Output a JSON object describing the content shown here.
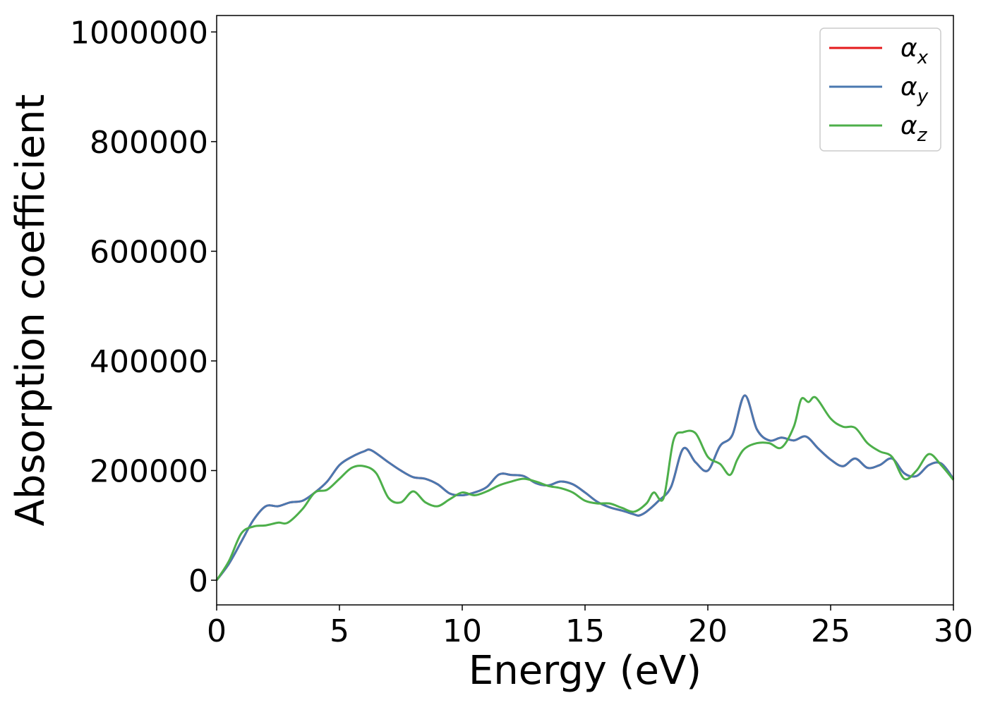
{
  "chart_data": {
    "type": "line",
    "title": "",
    "xlabel": "Energy (eV)",
    "ylabel": "Absorption coefficient",
    "xlim": [
      0,
      30
    ],
    "ylim": [
      -45000,
      1030000
    ],
    "xticks": [
      0,
      5,
      10,
      15,
      20,
      25,
      30
    ],
    "xtick_labels": [
      "0",
      "5",
      "10",
      "15",
      "20",
      "25",
      "30"
    ],
    "yticks": [
      0,
      200000,
      400000,
      600000,
      800000,
      1000000
    ],
    "ytick_labels": [
      "0",
      "200000",
      "400000",
      "600000",
      "800000",
      "1000000"
    ],
    "grid": false,
    "legend_position": "top-right",
    "colors": {
      "alpha_x": "#e41a1c",
      "alpha_y": "#4a78b0",
      "alpha_z": "#4daf4a"
    },
    "series": [
      {
        "name": "α_x",
        "legend_main": "α",
        "legend_sub": "x",
        "color": "#e41a1c",
        "x": [
          0,
          0.5,
          1,
          1.5,
          2,
          2.5,
          3,
          3.5,
          4,
          4.5,
          5,
          5.5,
          6,
          6.3,
          7,
          7.5,
          8,
          8.5,
          9,
          9.5,
          10,
          10.5,
          11,
          11.5,
          12,
          12.5,
          13,
          13.5,
          14,
          14.5,
          15,
          15.5,
          16,
          16.5,
          17,
          17.2,
          17.5,
          18,
          18.5,
          19,
          19.5,
          20,
          20.5,
          21,
          21.5,
          22,
          22.5,
          23,
          23.5,
          24,
          24.5,
          25,
          25.5,
          26,
          26.5,
          27,
          27.5,
          28,
          28.5,
          29,
          29.5,
          30
        ],
        "values": [
          0,
          30000,
          70000,
          110000,
          135000,
          135000,
          142000,
          145000,
          160000,
          180000,
          210000,
          225000,
          235000,
          237000,
          215000,
          200000,
          188000,
          185000,
          175000,
          158000,
          155000,
          160000,
          170000,
          193000,
          192000,
          190000,
          177000,
          173000,
          180000,
          175000,
          160000,
          143000,
          133000,
          127000,
          120000,
          118000,
          125000,
          145000,
          170000,
          240000,
          215000,
          200000,
          245000,
          265000,
          337000,
          275000,
          255000,
          260000,
          255000,
          262000,
          240000,
          220000,
          208000,
          222000,
          205000,
          210000,
          222000,
          195000,
          190000,
          210000,
          213000,
          185000
        ]
      },
      {
        "name": "α_y",
        "legend_main": "α",
        "legend_sub": "y",
        "color": "#4a78b0",
        "x": [
          0,
          0.5,
          1,
          1.5,
          2,
          2.5,
          3,
          3.5,
          4,
          4.5,
          5,
          5.5,
          6,
          6.3,
          7,
          7.5,
          8,
          8.5,
          9,
          9.5,
          10,
          10.5,
          11,
          11.5,
          12,
          12.5,
          13,
          13.5,
          14,
          14.5,
          15,
          15.5,
          16,
          16.5,
          17,
          17.2,
          17.5,
          18,
          18.5,
          19,
          19.5,
          20,
          20.5,
          21,
          21.5,
          22,
          22.5,
          23,
          23.5,
          24,
          24.5,
          25,
          25.5,
          26,
          26.5,
          27,
          27.5,
          28,
          28.5,
          29,
          29.5,
          30
        ],
        "values": [
          0,
          30000,
          70000,
          110000,
          135000,
          135000,
          142000,
          145000,
          160000,
          180000,
          210000,
          225000,
          235000,
          237000,
          215000,
          200000,
          188000,
          185000,
          175000,
          158000,
          155000,
          160000,
          170000,
          193000,
          192000,
          190000,
          177000,
          173000,
          180000,
          175000,
          160000,
          143000,
          133000,
          127000,
          120000,
          118000,
          125000,
          145000,
          170000,
          240000,
          215000,
          200000,
          245000,
          265000,
          337000,
          275000,
          255000,
          260000,
          255000,
          262000,
          240000,
          220000,
          208000,
          222000,
          205000,
          210000,
          222000,
          195000,
          190000,
          210000,
          213000,
          185000
        ]
      },
      {
        "name": "α_z",
        "legend_main": "α",
        "legend_sub": "z",
        "color": "#4daf4a",
        "x": [
          0,
          0.5,
          1,
          1.5,
          2,
          2.5,
          2.9,
          3.5,
          4,
          4.5,
          5,
          5.5,
          6,
          6.5,
          7,
          7.5,
          8,
          8.5,
          9,
          9.5,
          10,
          10.5,
          11,
          11.5,
          12,
          12.5,
          13,
          13.5,
          14,
          14.5,
          15,
          15.5,
          16,
          16.5,
          17,
          17.5,
          17.8,
          18.2,
          18.6,
          19,
          19.5,
          20,
          20.5,
          20.9,
          21.2,
          21.5,
          22,
          22.5,
          23,
          23.5,
          23.8,
          24.1,
          24.4,
          25,
          25.5,
          26,
          26.5,
          27,
          27.5,
          28,
          28.5,
          29,
          29.5,
          30
        ],
        "values": [
          0,
          35000,
          85000,
          98000,
          100000,
          105000,
          105000,
          130000,
          160000,
          165000,
          185000,
          205000,
          208000,
          195000,
          150000,
          142000,
          162000,
          142000,
          135000,
          148000,
          160000,
          155000,
          162000,
          173000,
          180000,
          185000,
          180000,
          172000,
          168000,
          160000,
          145000,
          140000,
          140000,
          132000,
          125000,
          140000,
          160000,
          150000,
          255000,
          270000,
          268000,
          225000,
          212000,
          192000,
          220000,
          240000,
          250000,
          250000,
          242000,
          280000,
          330000,
          325000,
          333000,
          295000,
          280000,
          278000,
          250000,
          235000,
          225000,
          185000,
          200000,
          230000,
          210000,
          183000
        ]
      }
    ]
  }
}
